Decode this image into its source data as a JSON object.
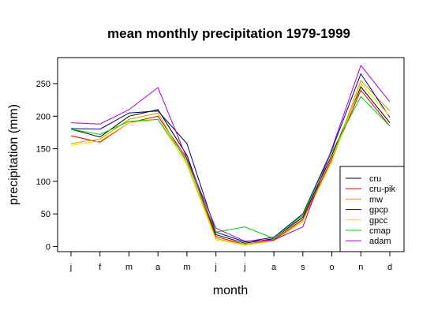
{
  "chart_data": {
    "type": "line",
    "title": "mean monthly precipitation 1979-1999",
    "xlabel": "month",
    "ylabel": "precipitation (mm)",
    "categories": [
      "j",
      "f",
      "m",
      "a",
      "m",
      "j",
      "j",
      "a",
      "s",
      "o",
      "n",
      "d"
    ],
    "yticks": [
      0,
      50,
      100,
      150,
      200,
      250
    ],
    "ylim": [
      -8,
      290
    ],
    "grid": false,
    "legend_position": "bottom-right",
    "series": [
      {
        "name": "cru",
        "color": "#000000",
        "values": [
          180,
          168,
          200,
          210,
          140,
          18,
          5,
          12,
          45,
          140,
          245,
          190
        ]
      },
      {
        "name": "cru-pik",
        "color": "#dd0000",
        "values": [
          170,
          160,
          190,
          200,
          135,
          15,
          3,
          10,
          42,
          135,
          240,
          185
        ]
      },
      {
        "name": "mw",
        "color": "#d4a000",
        "values": [
          158,
          165,
          195,
          205,
          128,
          12,
          3,
          9,
          40,
          132,
          255,
          208
        ]
      },
      {
        "name": "gpcp",
        "color": "#000080",
        "values": [
          181,
          180,
          205,
          208,
          158,
          22,
          7,
          14,
          50,
          148,
          265,
          198
        ]
      },
      {
        "name": "gpcc",
        "color": "#f0e000",
        "values": [
          155,
          162,
          190,
          195,
          125,
          10,
          2,
          8,
          38,
          130,
          250,
          200
        ]
      },
      {
        "name": "cmap",
        "color": "#00cc00",
        "values": [
          180,
          172,
          192,
          195,
          132,
          22,
          30,
          12,
          48,
          145,
          230,
          185
        ]
      },
      {
        "name": "adam",
        "color": "#aa00cc",
        "values": [
          190,
          188,
          210,
          244,
          135,
          28,
          8,
          10,
          30,
          150,
          278,
          222
        ]
      }
    ]
  }
}
